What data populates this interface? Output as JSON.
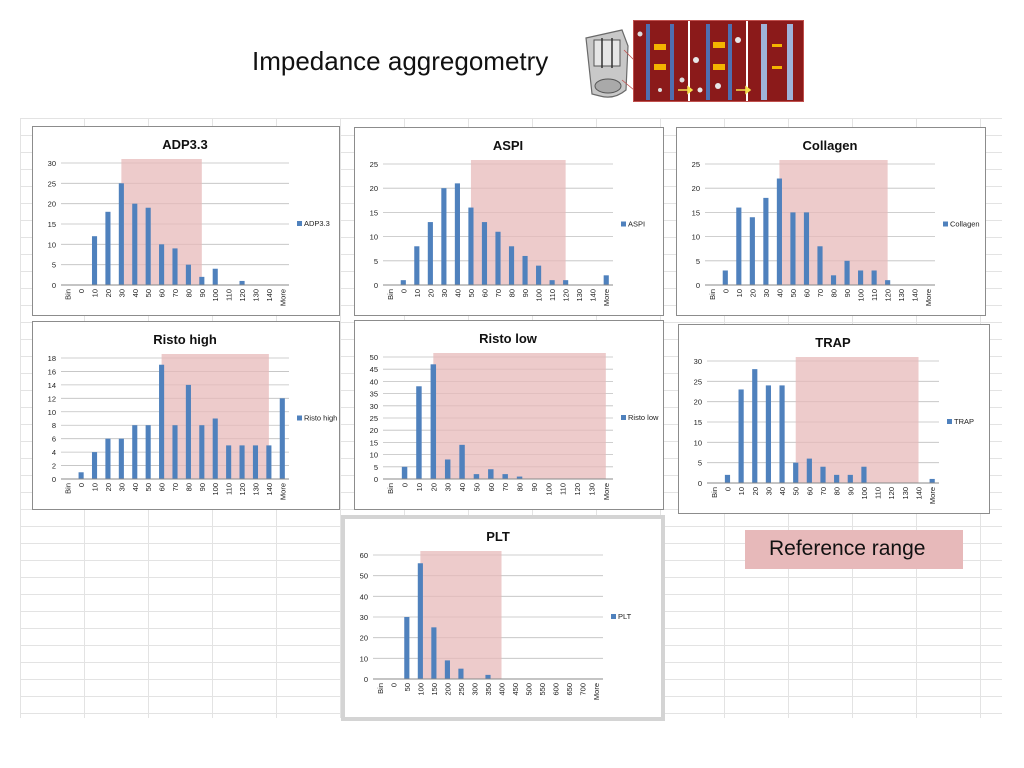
{
  "slide": {
    "title": "Impedance aggregometry",
    "reference_label": "Reference range"
  },
  "colors": {
    "bar": "#4f81bd",
    "reference": "#e7b9ba",
    "grid": "#bfbfbf",
    "axis": "#888888"
  },
  "chart_data": [
    {
      "type": "bar",
      "title": "ADP3.3",
      "series_name": "ADP3.3",
      "categories": [
        "Bin",
        "0",
        "10",
        "20",
        "30",
        "40",
        "50",
        "60",
        "70",
        "80",
        "90",
        "100",
        "110",
        "120",
        "130",
        "140",
        "More"
      ],
      "values": [
        0,
        0,
        12,
        18,
        25,
        20,
        19,
        10,
        9,
        5,
        2,
        4,
        0,
        1,
        0,
        0,
        0
      ],
      "ylim": [
        0,
        30
      ],
      "yticks": [
        0,
        5,
        10,
        15,
        20,
        25,
        30
      ],
      "reference_range": [
        "30",
        "90"
      ],
      "legend": "right",
      "grid": true
    },
    {
      "type": "bar",
      "title": "ASPI",
      "series_name": "ASPI",
      "categories": [
        "Bin",
        "0",
        "10",
        "20",
        "30",
        "40",
        "50",
        "60",
        "70",
        "80",
        "90",
        "100",
        "110",
        "120",
        "130",
        "140",
        "More"
      ],
      "values": [
        0,
        1,
        8,
        13,
        20,
        21,
        16,
        13,
        11,
        8,
        6,
        4,
        1,
        1,
        0,
        0,
        2
      ],
      "ylim": [
        0,
        25
      ],
      "yticks": [
        0,
        5,
        10,
        15,
        20,
        25
      ],
      "reference_range": [
        "50",
        "120"
      ],
      "legend": "right",
      "grid": true
    },
    {
      "type": "bar",
      "title": "Collagen",
      "series_name": "Collagen",
      "categories": [
        "Bin",
        "0",
        "10",
        "20",
        "30",
        "40",
        "50",
        "60",
        "70",
        "80",
        "90",
        "100",
        "110",
        "120",
        "130",
        "140",
        "More"
      ],
      "values": [
        0,
        3,
        16,
        14,
        18,
        22,
        15,
        15,
        8,
        2,
        5,
        3,
        3,
        1,
        0,
        0,
        0
      ],
      "ylim": [
        0,
        25
      ],
      "yticks": [
        0,
        5,
        10,
        15,
        20,
        25
      ],
      "reference_range": [
        "40",
        "120"
      ],
      "legend": "right",
      "grid": true
    },
    {
      "type": "bar",
      "title": "Risto high",
      "series_name": "Risto high",
      "categories": [
        "Bin",
        "0",
        "10",
        "20",
        "30",
        "40",
        "50",
        "60",
        "70",
        "80",
        "90",
        "100",
        "110",
        "120",
        "130",
        "140",
        "More"
      ],
      "values": [
        0,
        1,
        4,
        6,
        6,
        8,
        8,
        17,
        8,
        14,
        8,
        9,
        5,
        5,
        5,
        5,
        12
      ],
      "ylim": [
        0,
        18
      ],
      "yticks": [
        0,
        2,
        4,
        6,
        8,
        10,
        12,
        14,
        16,
        18
      ],
      "reference_range": [
        "60",
        "140"
      ],
      "legend": "right",
      "grid": true
    },
    {
      "type": "bar",
      "title": "Risto low",
      "series_name": "Risto low",
      "categories": [
        "Bin",
        "0",
        "10",
        "20",
        "30",
        "40",
        "50",
        "60",
        "70",
        "80",
        "90",
        "100",
        "110",
        "120",
        "130",
        "More"
      ],
      "values": [
        0,
        5,
        38,
        47,
        8,
        14,
        2,
        4,
        2,
        1,
        0,
        0,
        0,
        0,
        0,
        0
      ],
      "ylim": [
        0,
        50
      ],
      "yticks": [
        0,
        5,
        10,
        15,
        20,
        25,
        30,
        35,
        40,
        45,
        50
      ],
      "reference_range": [
        "20",
        "More"
      ],
      "legend": "right",
      "grid": true
    },
    {
      "type": "bar",
      "title": "TRAP",
      "series_name": "TRAP",
      "categories": [
        "Bin",
        "0",
        "10",
        "20",
        "30",
        "40",
        "50",
        "60",
        "70",
        "80",
        "90",
        "100",
        "110",
        "120",
        "130",
        "140",
        "More"
      ],
      "values": [
        0,
        2,
        23,
        28,
        24,
        24,
        5,
        6,
        4,
        2,
        2,
        4,
        0,
        0,
        0,
        0,
        1
      ],
      "ylim": [
        0,
        30
      ],
      "yticks": [
        0,
        5,
        10,
        15,
        20,
        25,
        30
      ],
      "reference_range": [
        "50",
        "140"
      ],
      "legend": "right",
      "grid": true
    },
    {
      "type": "bar",
      "title": "PLT",
      "series_name": "PLT",
      "categories": [
        "Bin",
        "0",
        "50",
        "100",
        "150",
        "200",
        "250",
        "300",
        "350",
        "400",
        "450",
        "500",
        "550",
        "600",
        "650",
        "700",
        "More"
      ],
      "values": [
        0,
        0,
        30,
        56,
        25,
        9,
        5,
        0,
        2,
        0,
        0,
        0,
        0,
        0,
        0,
        0,
        0
      ],
      "ylim": [
        0,
        60
      ],
      "yticks": [
        0,
        10,
        20,
        30,
        40,
        50,
        60
      ],
      "reference_range": [
        "100",
        "400"
      ],
      "legend": "right",
      "grid": true
    }
  ]
}
